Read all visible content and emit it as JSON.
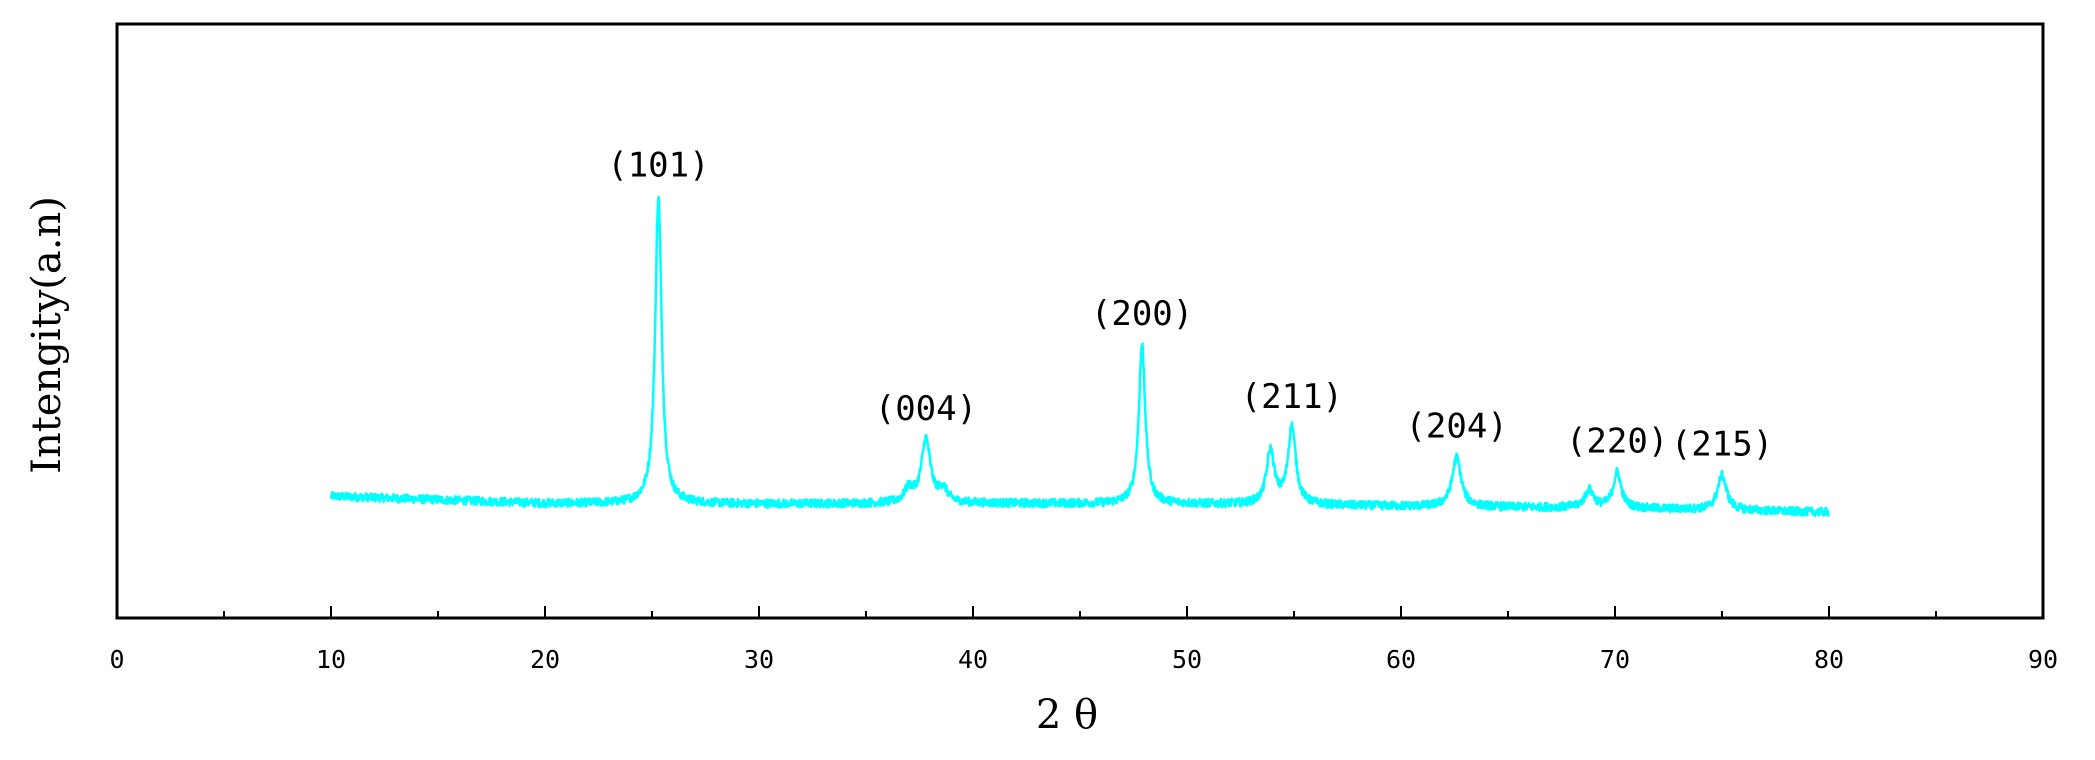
{
  "chart_data": {
    "type": "line",
    "xlabel": "2 θ",
    "ylabel": "Intengity(a.n)",
    "xlim": [
      0,
      90
    ],
    "ylim": [
      0,
      100
    ],
    "x_ticks": [
      0,
      10,
      20,
      30,
      40,
      50,
      60,
      70,
      80,
      90
    ],
    "x_tick_labels": [
      "0",
      "10",
      "20",
      "30",
      "40",
      "50",
      "60",
      "70",
      "80",
      "90"
    ],
    "x_minor_step": 5,
    "y_ticks_shown": false,
    "grid": false,
    "legend": "none",
    "line_color": "#00ffff",
    "x_range": [
      10,
      80
    ],
    "baseline": [
      {
        "x": 10,
        "y": 20.5
      },
      {
        "x": 20,
        "y": 19.3
      },
      {
        "x": 30,
        "y": 19.2
      },
      {
        "x": 40,
        "y": 19.3
      },
      {
        "x": 50,
        "y": 19.2
      },
      {
        "x": 60,
        "y": 18.8
      },
      {
        "x": 70,
        "y": 18.5
      },
      {
        "x": 80,
        "y": 17.8
      }
    ],
    "peaks": [
      {
        "x": 25.3,
        "y": 71.0,
        "width": 0.18,
        "label": "(101)"
      },
      {
        "x": 37.0,
        "y": 21.5,
        "width": 0.25,
        "label": ""
      },
      {
        "x": 37.8,
        "y": 30.0,
        "width": 0.25,
        "label": "(004)"
      },
      {
        "x": 38.6,
        "y": 21.5,
        "width": 0.25,
        "label": ""
      },
      {
        "x": 47.9,
        "y": 46.0,
        "width": 0.18,
        "label": "(200)"
      },
      {
        "x": 53.9,
        "y": 28.0,
        "width": 0.22,
        "label": ""
      },
      {
        "x": 54.9,
        "y": 32.0,
        "width": 0.22,
        "label": "(211)"
      },
      {
        "x": 62.6,
        "y": 27.0,
        "width": 0.25,
        "label": "(204)"
      },
      {
        "x": 68.8,
        "y": 21.5,
        "width": 0.25,
        "label": ""
      },
      {
        "x": 70.1,
        "y": 24.5,
        "width": 0.22,
        "label": "(220)"
      },
      {
        "x": 75.0,
        "y": 24.0,
        "width": 0.25,
        "label": "(215)"
      }
    ]
  }
}
